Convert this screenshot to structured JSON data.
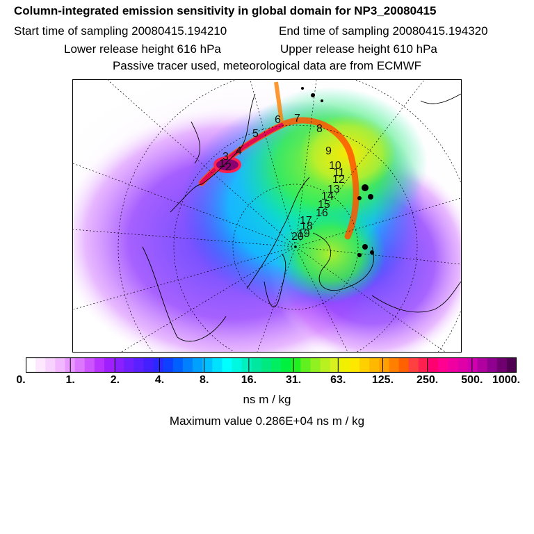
{
  "title": "Column-integrated emission sensitivity in global domain for NP3_20080415",
  "start_time": "Start time of sampling 20080415.194210",
  "end_time": "End time of sampling 20080415.194320",
  "lower_release": "Lower release height  616 hPa",
  "upper_release": "Upper release height  610 hPa",
  "note": "Passive tracer used, meteorological data are from ECMWF",
  "colorbar": {
    "tick_labels": [
      "0.",
      "1.",
      "2.",
      "4.",
      "8.",
      "16.",
      "31.",
      "63.",
      "125.",
      "250.",
      "500.",
      "1000."
    ],
    "colors": [
      "#ffffff",
      "#fde8ff",
      "#f8d2ff",
      "#f2b8ff",
      "#e898ff",
      "#dc78ff",
      "#cc55ff",
      "#b833ff",
      "#a01fff",
      "#8a20ff",
      "#7020ff",
      "#5a20ff",
      "#4420ff",
      "#2a28ff",
      "#1040ff",
      "#0060ff",
      "#0080ff",
      "#00a0ff",
      "#00c0ff",
      "#00e0ff",
      "#00ffff",
      "#00f8e0",
      "#00f0c0",
      "#00e8a0",
      "#00e880",
      "#00ee60",
      "#00f040",
      "#20f020",
      "#60f020",
      "#90f020",
      "#b8f020",
      "#d8f020",
      "#f0f000",
      "#ffe800",
      "#ffd000",
      "#ffb800",
      "#ffa000",
      "#ff8000",
      "#ff6000",
      "#ff4040",
      "#ff2050",
      "#ff0070",
      "#ff0090",
      "#f000a0",
      "#e000a8",
      "#d000b0",
      "#b000a0",
      "#900090",
      "#700070",
      "#500050"
    ]
  },
  "units": "ns m / kg",
  "max_value": "Maximum value  0.286E+04 ns m / kg",
  "trajectory_labels": [
    "1",
    "2",
    "3",
    "4",
    "5",
    "6",
    "7",
    "8",
    "9",
    "10",
    "11",
    "12",
    "13",
    "14",
    "15",
    "16",
    "17",
    "18",
    "19",
    "20"
  ]
}
